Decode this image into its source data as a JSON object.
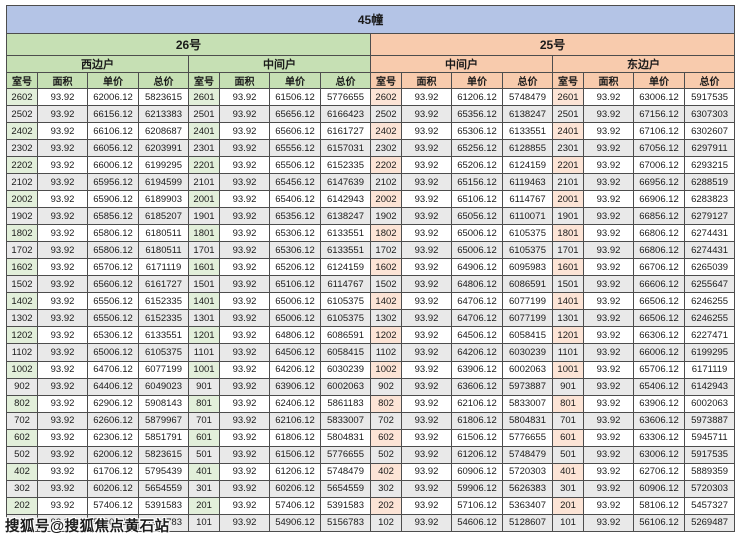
{
  "title": "45幢",
  "watermark": "搜狐号@搜狐焦点黄石站",
  "columns": [
    "室号",
    "面积",
    "单价",
    "总价"
  ],
  "colors": {
    "title_bar": "#b4c4e6",
    "building_26": "#c6e0b4",
    "building_25": "#f8cbad",
    "room_tint_26": "#e2efda",
    "room_tint_25": "#fce4d6",
    "stripe": "#e9e9e9",
    "border": "#4d4d4d"
  },
  "sections": [
    {
      "building": "26号",
      "groups": [
        {
          "side": "西边户",
          "rows": [
            [
              "2602",
              "93.92",
              "62006.12",
              "5823615"
            ],
            [
              "2502",
              "93.92",
              "66156.12",
              "6213383"
            ],
            [
              "2402",
              "93.92",
              "66106.12",
              "6208687"
            ],
            [
              "2302",
              "93.92",
              "66056.12",
              "6203991"
            ],
            [
              "2202",
              "93.92",
              "66006.12",
              "6199295"
            ],
            [
              "2102",
              "93.92",
              "65956.12",
              "6194599"
            ],
            [
              "2002",
              "93.92",
              "65906.12",
              "6189903"
            ],
            [
              "1902",
              "93.92",
              "65856.12",
              "6185207"
            ],
            [
              "1802",
              "93.92",
              "65806.12",
              "6180511"
            ],
            [
              "1702",
              "93.92",
              "65806.12",
              "6180511"
            ],
            [
              "1602",
              "93.92",
              "65706.12",
              "6171119"
            ],
            [
              "1502",
              "93.92",
              "65606.12",
              "6161727"
            ],
            [
              "1402",
              "93.92",
              "65506.12",
              "6152335"
            ],
            [
              "1302",
              "93.92",
              "65506.12",
              "6152335"
            ],
            [
              "1202",
              "93.92",
              "65306.12",
              "6133551"
            ],
            [
              "1102",
              "93.92",
              "65006.12",
              "6105375"
            ],
            [
              "1002",
              "93.92",
              "64706.12",
              "6077199"
            ],
            [
              "902",
              "93.92",
              "64406.12",
              "6049023"
            ],
            [
              "802",
              "93.92",
              "62906.12",
              "5908143"
            ],
            [
              "702",
              "93.92",
              "62606.12",
              "5879967"
            ],
            [
              "602",
              "93.92",
              "62306.12",
              "5851791"
            ],
            [
              "502",
              "93.92",
              "62006.12",
              "5823615"
            ],
            [
              "402",
              "93.92",
              "61706.12",
              "5795439"
            ],
            [
              "302",
              "93.92",
              "60206.12",
              "5654559"
            ],
            [
              "202",
              "93.92",
              "57406.12",
              "5391583"
            ],
            [
              "102",
              "93.92",
              "54906.12",
              "5156783"
            ]
          ]
        },
        {
          "side": "中间户",
          "rows": [
            [
              "2601",
              "93.92",
              "61506.12",
              "5776655"
            ],
            [
              "2501",
              "93.92",
              "65656.12",
              "6166423"
            ],
            [
              "2401",
              "93.92",
              "65606.12",
              "6161727"
            ],
            [
              "2301",
              "93.92",
              "65556.12",
              "6157031"
            ],
            [
              "2201",
              "93.92",
              "65506.12",
              "6152335"
            ],
            [
              "2101",
              "93.92",
              "65456.12",
              "6147639"
            ],
            [
              "2001",
              "93.92",
              "65406.12",
              "6142943"
            ],
            [
              "1901",
              "93.92",
              "65356.12",
              "6138247"
            ],
            [
              "1801",
              "93.92",
              "65306.12",
              "6133551"
            ],
            [
              "1701",
              "93.92",
              "65306.12",
              "6133551"
            ],
            [
              "1601",
              "93.92",
              "65206.12",
              "6124159"
            ],
            [
              "1501",
              "93.92",
              "65106.12",
              "6114767"
            ],
            [
              "1401",
              "93.92",
              "65006.12",
              "6105375"
            ],
            [
              "1301",
              "93.92",
              "65006.12",
              "6105375"
            ],
            [
              "1201",
              "93.92",
              "64806.12",
              "6086591"
            ],
            [
              "1101",
              "93.92",
              "64506.12",
              "6058415"
            ],
            [
              "1001",
              "93.92",
              "64206.12",
              "6030239"
            ],
            [
              "901",
              "93.92",
              "63906.12",
              "6002063"
            ],
            [
              "801",
              "93.92",
              "62406.12",
              "5861183"
            ],
            [
              "701",
              "93.92",
              "62106.12",
              "5833007"
            ],
            [
              "601",
              "93.92",
              "61806.12",
              "5804831"
            ],
            [
              "501",
              "93.92",
              "61506.12",
              "5776655"
            ],
            [
              "401",
              "93.92",
              "61206.12",
              "5748479"
            ],
            [
              "301",
              "93.92",
              "60206.12",
              "5654559"
            ],
            [
              "201",
              "93.92",
              "57406.12",
              "5391583"
            ],
            [
              "101",
              "93.92",
              "54906.12",
              "5156783"
            ]
          ]
        }
      ]
    },
    {
      "building": "25号",
      "groups": [
        {
          "side": "中间户",
          "rows": [
            [
              "2602",
              "93.92",
              "61206.12",
              "5748479"
            ],
            [
              "2502",
              "93.92",
              "65356.12",
              "6138247"
            ],
            [
              "2402",
              "93.92",
              "65306.12",
              "6133551"
            ],
            [
              "2302",
              "93.92",
              "65256.12",
              "6128855"
            ],
            [
              "2202",
              "93.92",
              "65206.12",
              "6124159"
            ],
            [
              "2102",
              "93.92",
              "65156.12",
              "6119463"
            ],
            [
              "2002",
              "93.92",
              "65106.12",
              "6114767"
            ],
            [
              "1902",
              "93.92",
              "65056.12",
              "6110071"
            ],
            [
              "1802",
              "93.92",
              "65006.12",
              "6105375"
            ],
            [
              "1702",
              "93.92",
              "65006.12",
              "6105375"
            ],
            [
              "1602",
              "93.92",
              "64906.12",
              "6095983"
            ],
            [
              "1502",
              "93.92",
              "64806.12",
              "6086591"
            ],
            [
              "1402",
              "93.92",
              "64706.12",
              "6077199"
            ],
            [
              "1302",
              "93.92",
              "64706.12",
              "6077199"
            ],
            [
              "1202",
              "93.92",
              "64506.12",
              "6058415"
            ],
            [
              "1102",
              "93.92",
              "64206.12",
              "6030239"
            ],
            [
              "1002",
              "93.92",
              "63906.12",
              "6002063"
            ],
            [
              "902",
              "93.92",
              "63606.12",
              "5973887"
            ],
            [
              "802",
              "93.92",
              "62106.12",
              "5833007"
            ],
            [
              "702",
              "93.92",
              "61806.12",
              "5804831"
            ],
            [
              "602",
              "93.92",
              "61506.12",
              "5776655"
            ],
            [
              "502",
              "93.92",
              "61206.12",
              "5748479"
            ],
            [
              "402",
              "93.92",
              "60906.12",
              "5720303"
            ],
            [
              "302",
              "93.92",
              "59906.12",
              "5626383"
            ],
            [
              "202",
              "93.92",
              "57106.12",
              "5363407"
            ],
            [
              "102",
              "93.92",
              "54606.12",
              "5128607"
            ]
          ]
        },
        {
          "side": "东边户",
          "rows": [
            [
              "2601",
              "93.92",
              "63006.12",
              "5917535"
            ],
            [
              "2501",
              "93.92",
              "67156.12",
              "6307303"
            ],
            [
              "2401",
              "93.92",
              "67106.12",
              "6302607"
            ],
            [
              "2301",
              "93.92",
              "67056.12",
              "6297911"
            ],
            [
              "2201",
              "93.92",
              "67006.12",
              "6293215"
            ],
            [
              "2101",
              "93.92",
              "66956.12",
              "6288519"
            ],
            [
              "2001",
              "93.92",
              "66906.12",
              "6283823"
            ],
            [
              "1901",
              "93.92",
              "66856.12",
              "6279127"
            ],
            [
              "1801",
              "93.92",
              "66806.12",
              "6274431"
            ],
            [
              "1701",
              "93.92",
              "66806.12",
              "6274431"
            ],
            [
              "1601",
              "93.92",
              "66706.12",
              "6265039"
            ],
            [
              "1501",
              "93.92",
              "66606.12",
              "6255647"
            ],
            [
              "1401",
              "93.92",
              "66506.12",
              "6246255"
            ],
            [
              "1301",
              "93.92",
              "66506.12",
              "6246255"
            ],
            [
              "1201",
              "93.92",
              "66306.12",
              "6227471"
            ],
            [
              "1101",
              "93.92",
              "66006.12",
              "6199295"
            ],
            [
              "1001",
              "93.92",
              "65706.12",
              "6171119"
            ],
            [
              "901",
              "93.92",
              "65406.12",
              "6142943"
            ],
            [
              "801",
              "93.92",
              "63906.12",
              "6002063"
            ],
            [
              "701",
              "93.92",
              "63606.12",
              "5973887"
            ],
            [
              "601",
              "93.92",
              "63306.12",
              "5945711"
            ],
            [
              "501",
              "93.92",
              "63006.12",
              "5917535"
            ],
            [
              "401",
              "93.92",
              "62706.12",
              "5889359"
            ],
            [
              "301",
              "93.92",
              "60906.12",
              "5720303"
            ],
            [
              "201",
              "93.92",
              "58106.12",
              "5457327"
            ],
            [
              "101",
              "93.92",
              "56106.12",
              "5269487"
            ]
          ]
        }
      ]
    }
  ]
}
